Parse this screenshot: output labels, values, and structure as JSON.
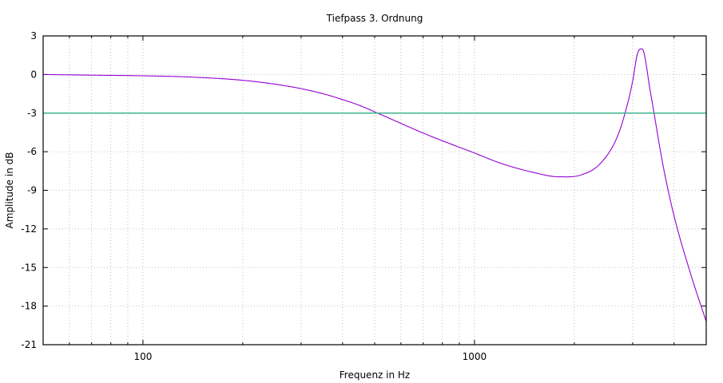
{
  "chart_data": {
    "type": "line",
    "title": "Tiefpass 3. Ordnung",
    "xlabel": "Frequenz in  Hz",
    "ylabel": "Amplitude in dB",
    "x_scale": "log",
    "xlim": [
      50,
      5000
    ],
    "ylim": [
      -21,
      3
    ],
    "x_ticks": [
      {
        "value": 100,
        "label": "100"
      },
      {
        "value": 1000,
        "label": "1000"
      }
    ],
    "y_ticks": [
      {
        "value": 3,
        "label": "3"
      },
      {
        "value": 0,
        "label": "0"
      },
      {
        "value": -3,
        "label": "-3"
      },
      {
        "value": -6,
        "label": "-6"
      },
      {
        "value": -9,
        "label": "-9"
      },
      {
        "value": -12,
        "label": "-12"
      },
      {
        "value": -15,
        "label": "-15"
      },
      {
        "value": -18,
        "label": "-18"
      },
      {
        "value": -21,
        "label": "-21"
      }
    ],
    "grid": true,
    "series": [
      {
        "color": "#9400d3",
        "x": [
          50,
          70,
          100,
          140,
          200,
          250,
          300,
          350,
          400,
          450,
          500,
          600,
          700,
          800,
          1000,
          1200,
          1500,
          1800,
          2100,
          2400,
          2700,
          2900,
          3000,
          3100,
          3200,
          3400,
          3700,
          4000,
          4500,
          5000
        ],
        "y": [
          0.0,
          -0.05,
          -0.1,
          -0.2,
          -0.45,
          -0.75,
          -1.1,
          -1.5,
          -1.95,
          -2.4,
          -2.9,
          -3.8,
          -4.55,
          -5.15,
          -6.1,
          -6.9,
          -7.6,
          -7.95,
          -7.8,
          -6.9,
          -4.8,
          -2.2,
          -0.5,
          1.6,
          2.0,
          -1.5,
          -7.0,
          -11.0,
          -15.6,
          -19.2
        ]
      },
      {
        "color": "#3cb48c",
        "x": [
          50,
          5000
        ],
        "y": [
          -3,
          -3
        ]
      }
    ]
  }
}
